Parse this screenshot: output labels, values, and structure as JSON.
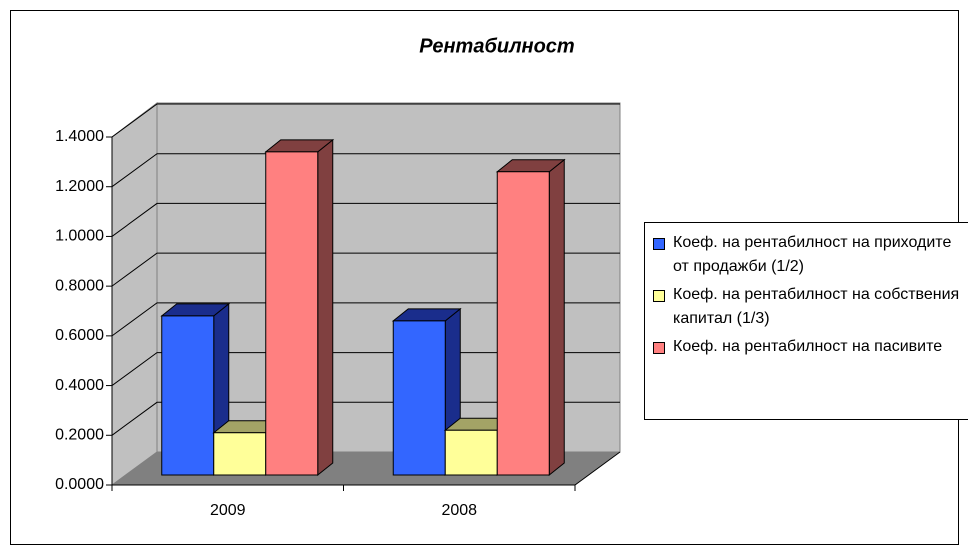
{
  "chart_data": {
    "type": "bar3d",
    "title": "Рентабилност",
    "categories": [
      "2009",
      "2008"
    ],
    "series": [
      {
        "name": "Коеф. на рентабилност на приходите от продажби (1/2)",
        "color": "#3366ff",
        "side": "#1a2d8c",
        "values": [
          0.64,
          0.62
        ]
      },
      {
        "name": "Коеф. на рентабилност на собствения капитал (1/3)",
        "color": "#ffff99",
        "side": "#a3a366",
        "values": [
          0.17,
          0.18
        ]
      },
      {
        "name": "Коеф. на рентабилност на пасивите",
        "color": "#ff8080",
        "side": "#804040",
        "values": [
          1.3,
          1.22
        ]
      }
    ],
    "ylim": [
      0,
      1.4
    ],
    "yticks": [
      {
        "value": 0,
        "label": "0.0000"
      },
      {
        "value": 0.2,
        "label": "0.2000"
      },
      {
        "value": 0.4,
        "label": "0.4000"
      },
      {
        "value": 0.6,
        "label": "0.6000"
      },
      {
        "value": 0.8,
        "label": "0.8000"
      },
      {
        "value": 1,
        "label": "1.0000"
      },
      {
        "value": 1.2,
        "label": "1.2000"
      },
      {
        "value": 1.4,
        "label": "1.4000"
      }
    ],
    "grid": true
  }
}
